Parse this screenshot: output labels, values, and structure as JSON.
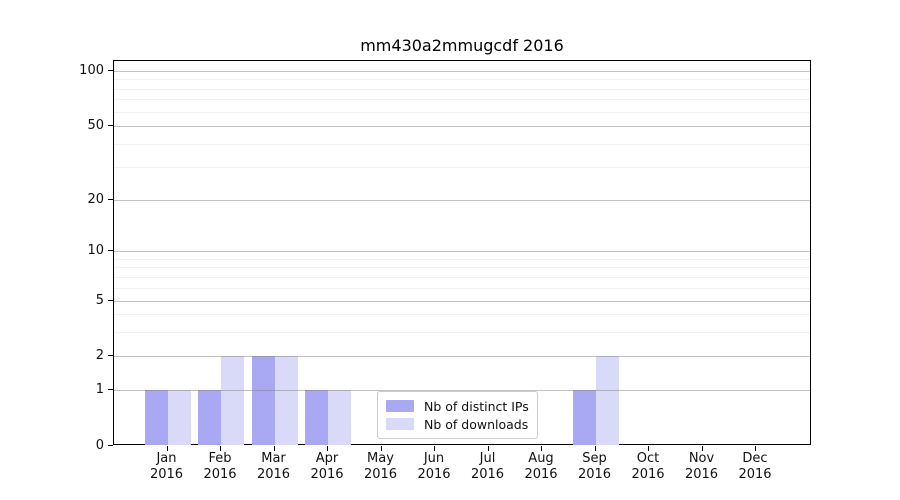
{
  "title": "mm430a2mmugcdf 2016",
  "chart_data": {
    "type": "bar",
    "title": "mm430a2mmugcdf 2016",
    "x_axis": {
      "months": [
        "Jan",
        "Feb",
        "Mar",
        "Apr",
        "May",
        "Jun",
        "Jul",
        "Aug",
        "Sep",
        "Oct",
        "Nov",
        "Dec"
      ],
      "year": "2016"
    },
    "y_axis": {
      "scale": "log-like",
      "range": [
        0,
        100
      ],
      "major_ticks": [
        0,
        1,
        2,
        5,
        10,
        20,
        50,
        100
      ],
      "minor_ticks": [
        3,
        4,
        6,
        7,
        8,
        9,
        30,
        40,
        60,
        70,
        80,
        90
      ]
    },
    "series": [
      {
        "name": "Nb of distinct IPs",
        "color": "#a9a9f3",
        "values": [
          1,
          1,
          2,
          1,
          0,
          0,
          0,
          0,
          1,
          0,
          0,
          0
        ]
      },
      {
        "name": "Nb of downloads",
        "color": "#d9d9f8",
        "values": [
          1,
          2,
          2,
          1,
          0,
          0,
          0,
          0,
          2,
          0,
          0,
          0
        ]
      }
    ],
    "legend": {
      "position": "inside-bottom-center",
      "entries": [
        "Nb of distinct IPs",
        "Nb of downloads"
      ]
    },
    "grid": {
      "major_color": "rgba(120,120,120,0.45)",
      "minor_color": "#f0f0f0"
    }
  }
}
